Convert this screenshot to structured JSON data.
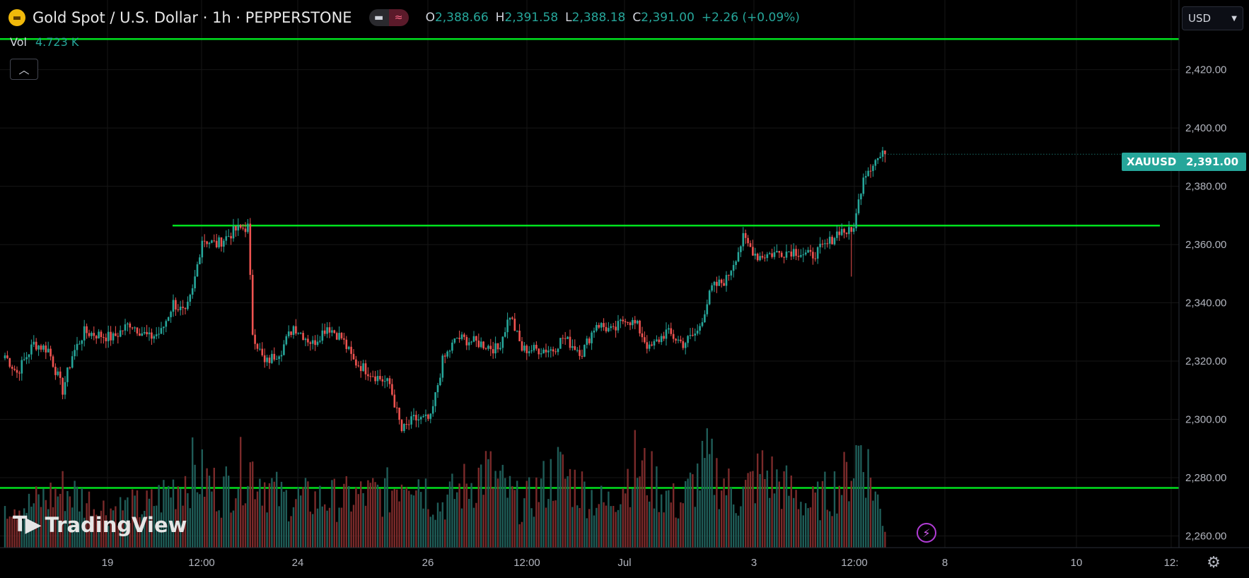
{
  "header": {
    "instrument": "Gold Spot / U.S. Dollar · 1h · PEPPERSTONE",
    "logo_icon": "gold-bars-icon",
    "ohlc": {
      "o_label": "O",
      "o": "2,388.66",
      "h_label": "H",
      "h": "2,391.58",
      "l_label": "L",
      "l": "2,388.18",
      "c_label": "C",
      "c": "2,391.00",
      "change": "+2.26 (+0.09%)"
    }
  },
  "volume": {
    "label": "Vol",
    "value": "4.723 K"
  },
  "currency": {
    "value": "USD"
  },
  "symbol_tag": "XAUUSD",
  "price_tag": "2,391.00",
  "brand": "TradingView",
  "colors": {
    "up": "#26a69a",
    "down": "#ef5350",
    "levels": "#00e01e",
    "grid": "#161616"
  },
  "chart_data": {
    "type": "candlestick",
    "symbol": "XAUUSD",
    "interval": "1h",
    "y_axis": {
      "ticks": [
        2260,
        2280,
        2300,
        2320,
        2340,
        2360,
        2380,
        2400,
        2420
      ],
      "tick_labels": [
        "2,260.00",
        "2,280.00",
        "2,300.00",
        "2,320.00",
        "2,340.00",
        "2,360.00",
        "2,380.00",
        "2,400.00",
        "2,420.00"
      ],
      "range": [
        2256,
        2433
      ]
    },
    "x_axis": {
      "tick_labels": [
        "19",
        "12:00",
        "24",
        "26",
        "12:00",
        "Jul",
        "3",
        "12:00",
        "8",
        "10",
        "12:"
      ]
    },
    "last_price": 2391.0,
    "horizontal_levels": [
      {
        "value": 2430.5,
        "span": "full"
      },
      {
        "value": 2366.5,
        "span": "partial"
      },
      {
        "value": 2276.5,
        "span": "full"
      }
    ],
    "price_anchors": [
      [
        0,
        2322
      ],
      [
        5,
        2316
      ],
      [
        12,
        2326
      ],
      [
        18,
        2324
      ],
      [
        24,
        2310
      ],
      [
        28,
        2322
      ],
      [
        33,
        2330
      ],
      [
        45,
        2328
      ],
      [
        52,
        2333
      ],
      [
        60,
        2328
      ],
      [
        65,
        2330
      ],
      [
        70,
        2340
      ],
      [
        75,
        2336
      ],
      [
        78,
        2344
      ],
      [
        82,
        2362
      ],
      [
        88,
        2360
      ],
      [
        96,
        2365
      ],
      [
        101,
        2366
      ],
      [
        103,
        2330
      ],
      [
        108,
        2319
      ],
      [
        115,
        2324
      ],
      [
        120,
        2332
      ],
      [
        128,
        2326
      ],
      [
        134,
        2332
      ],
      [
        140,
        2328
      ],
      [
        145,
        2320
      ],
      [
        152,
        2316
      ],
      [
        160,
        2312
      ],
      [
        165,
        2296
      ],
      [
        170,
        2300
      ],
      [
        177,
        2300
      ],
      [
        182,
        2320
      ],
      [
        188,
        2328
      ],
      [
        198,
        2326
      ],
      [
        205,
        2324
      ],
      [
        210,
        2336
      ],
      [
        215,
        2324
      ],
      [
        228,
        2324
      ],
      [
        232,
        2328
      ],
      [
        240,
        2323
      ],
      [
        246,
        2333
      ],
      [
        253,
        2330
      ],
      [
        258,
        2335
      ],
      [
        263,
        2332
      ],
      [
        268,
        2324
      ],
      [
        275,
        2330
      ],
      [
        282,
        2326
      ],
      [
        288,
        2330
      ],
      [
        294,
        2345
      ],
      [
        300,
        2348
      ],
      [
        307,
        2362
      ],
      [
        313,
        2356
      ],
      [
        320,
        2357
      ],
      [
        328,
        2358
      ],
      [
        335,
        2356
      ],
      [
        342,
        2360
      ],
      [
        347,
        2365
      ],
      [
        352,
        2364
      ],
      [
        354,
        2370
      ],
      [
        357,
        2384
      ],
      [
        362,
        2389
      ],
      [
        366,
        2391
      ]
    ],
    "volume_anchors": [
      [
        0,
        0.35
      ],
      [
        10,
        0.3
      ],
      [
        25,
        0.42
      ],
      [
        40,
        0.28
      ],
      [
        60,
        0.3
      ],
      [
        78,
        0.55
      ],
      [
        90,
        0.4
      ],
      [
        101,
        0.6
      ],
      [
        115,
        0.35
      ],
      [
        140,
        0.35
      ],
      [
        160,
        0.4
      ],
      [
        168,
        0.6
      ],
      [
        180,
        0.3
      ],
      [
        200,
        0.55
      ],
      [
        215,
        0.3
      ],
      [
        230,
        0.55
      ],
      [
        250,
        0.3
      ],
      [
        262,
        0.6
      ],
      [
        280,
        0.3
      ],
      [
        292,
        0.6
      ],
      [
        305,
        0.35
      ],
      [
        315,
        0.55
      ],
      [
        335,
        0.3
      ],
      [
        350,
        0.5
      ],
      [
        356,
        0.75
      ],
      [
        366,
        0.15
      ]
    ]
  }
}
